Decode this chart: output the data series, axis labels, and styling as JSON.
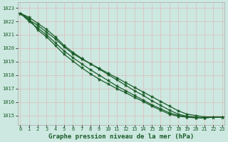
{
  "title": "Graphe pression niveau de la mer (hPa)",
  "bg_color": "#cce8e0",
  "grid_color": "#ddbbbb",
  "line_color": "#1a5c28",
  "marker_color": "#1a5c28",
  "ylim": [
    1014.3,
    1023.4
  ],
  "xlim": [
    -0.3,
    23.3
  ],
  "yticks": [
    1015,
    1016,
    1017,
    1018,
    1019,
    1020,
    1021,
    1022,
    1023
  ],
  "xticks": [
    0,
    1,
    2,
    3,
    4,
    5,
    6,
    7,
    8,
    9,
    10,
    11,
    12,
    13,
    14,
    15,
    16,
    17,
    18,
    19,
    20,
    21,
    22,
    23
  ],
  "lines": [
    [
      1022.6,
      1022.1,
      1021.7,
      1021.2,
      1020.7,
      1020.1,
      1019.6,
      1019.2,
      1018.85,
      1018.5,
      1018.15,
      1017.8,
      1017.45,
      1017.1,
      1016.75,
      1016.4,
      1016.05,
      1015.7,
      1015.35,
      1015.1,
      1015.0,
      1014.9,
      1014.9,
      1014.9
    ],
    [
      1022.6,
      1022.0,
      1021.5,
      1021.0,
      1020.4,
      1019.8,
      1019.3,
      1018.85,
      1018.4,
      1018.0,
      1017.6,
      1017.2,
      1016.85,
      1016.5,
      1016.15,
      1015.8,
      1015.5,
      1015.2,
      1015.0,
      1014.9,
      1014.85,
      1014.85,
      1014.9,
      1014.9
    ],
    [
      1022.6,
      1022.2,
      1021.35,
      1020.85,
      1020.2,
      1019.55,
      1019.05,
      1018.55,
      1018.1,
      1017.7,
      1017.35,
      1017.0,
      1016.7,
      1016.35,
      1016.05,
      1015.7,
      1015.4,
      1015.1,
      1014.95,
      1014.88,
      1014.82,
      1014.82,
      1014.88,
      1014.88
    ],
    [
      1022.6,
      1022.3,
      1021.85,
      1021.4,
      1020.85,
      1020.2,
      1019.7,
      1019.25,
      1018.85,
      1018.45,
      1018.05,
      1017.65,
      1017.25,
      1016.85,
      1016.5,
      1016.1,
      1015.75,
      1015.4,
      1015.1,
      1014.95,
      1014.88,
      1014.82,
      1014.88,
      1014.88
    ]
  ],
  "marker": "*",
  "markersize": 3.5,
  "linewidth": 0.9,
  "title_fontsize": 6.5,
  "tick_fontsize": 5.0,
  "ylabel_fontsize": 5.0
}
